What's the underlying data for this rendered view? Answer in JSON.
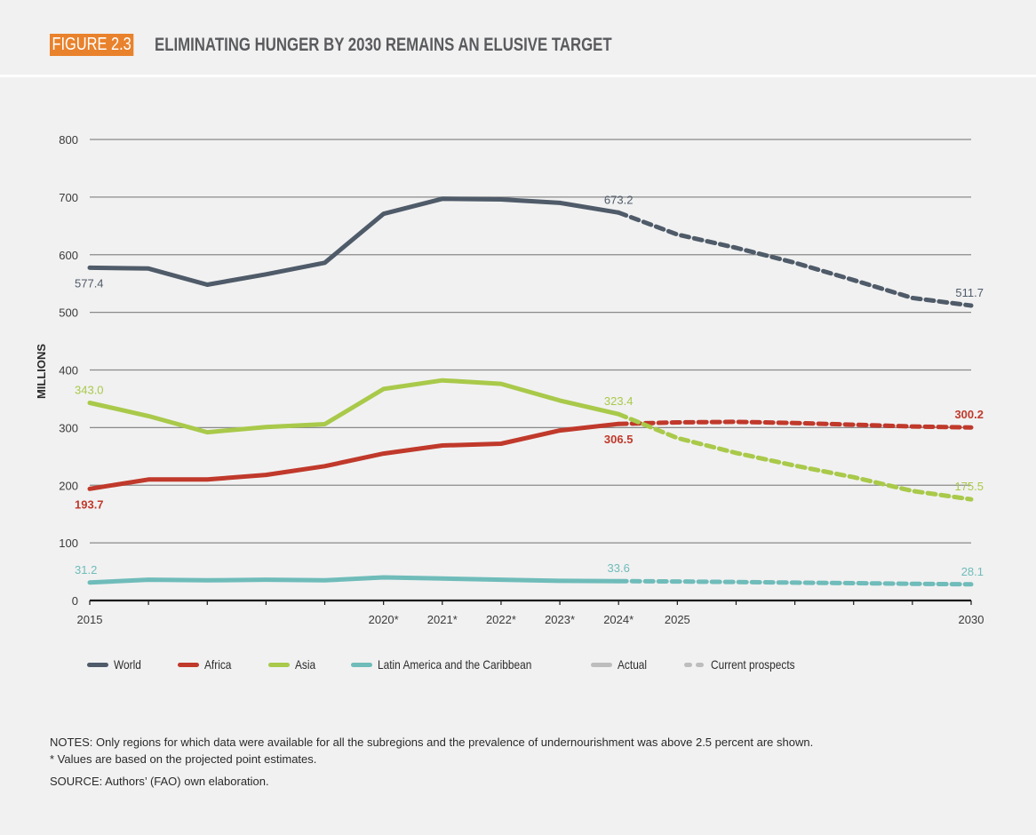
{
  "header": {
    "figure_badge": "FIGURE 2.3",
    "title": "ELIMINATING HUNGER BY 2030 REMAINS AN ELUSIVE TARGET",
    "badge_color": "#e9822c"
  },
  "chart_data": {
    "type": "line",
    "title": "ELIMINATING HUNGER BY 2030 REMAINS AN ELUSIVE TARGET",
    "xlabel": "",
    "ylabel": "MILLIONS",
    "ylim": [
      0,
      800
    ],
    "yticks": [
      0,
      100,
      200,
      300,
      400,
      500,
      600,
      700,
      800
    ],
    "xlim": [
      2015,
      2030
    ],
    "x": [
      2015,
      2016,
      2017,
      2018,
      2019,
      2020,
      2021,
      2022,
      2023,
      2024,
      2025,
      2026,
      2027,
      2028,
      2029,
      2030
    ],
    "xtick_labels": [
      {
        "x": 2015,
        "label": "2015"
      },
      {
        "x": 2016,
        "label": ""
      },
      {
        "x": 2017,
        "label": ""
      },
      {
        "x": 2018,
        "label": ""
      },
      {
        "x": 2019,
        "label": ""
      },
      {
        "x": 2020,
        "label": "2020*"
      },
      {
        "x": 2021,
        "label": "2021*"
      },
      {
        "x": 2022,
        "label": "2022*"
      },
      {
        "x": 2023,
        "label": "2023*"
      },
      {
        "x": 2024,
        "label": "2024*"
      },
      {
        "x": 2025,
        "label": "2025"
      },
      {
        "x": 2026,
        "label": ""
      },
      {
        "x": 2027,
        "label": ""
      },
      {
        "x": 2028,
        "label": ""
      },
      {
        "x": 2029,
        "label": ""
      },
      {
        "x": 2030,
        "label": "2030"
      }
    ],
    "grid": true,
    "actual_until": 2024,
    "series": [
      {
        "name": "World",
        "color": "#4f5b69",
        "values": [
          577.4,
          576,
          548,
          566,
          586,
          671,
          697,
          696,
          690,
          673.2,
          635,
          612,
          586,
          556,
          525,
          511.7
        ],
        "labels": [
          {
            "x": 2015,
            "text": "577.4",
            "pos": "below"
          },
          {
            "x": 2024,
            "text": "673.2",
            "pos": "above"
          },
          {
            "x": 2030,
            "text": "511.7",
            "pos": "above"
          }
        ]
      },
      {
        "name": "Africa",
        "color": "#c0392b",
        "values": [
          193.7,
          210,
          210,
          218,
          233,
          255,
          269,
          272,
          295,
          306.5,
          309,
          310,
          308,
          305,
          302,
          300.2
        ],
        "labels": [
          {
            "x": 2015,
            "text": "193.7",
            "pos": "below"
          },
          {
            "x": 2024,
            "text": "306.5",
            "pos": "below"
          },
          {
            "x": 2030,
            "text": "300.2",
            "pos": "above"
          }
        ]
      },
      {
        "name": "Asia",
        "color": "#a9c94a",
        "values": [
          343.0,
          320,
          292,
          301,
          306,
          367,
          382,
          376,
          347,
          323.4,
          282,
          256,
          234,
          214,
          190,
          175.5
        ],
        "labels": [
          {
            "x": 2015,
            "text": "343.0",
            "pos": "above"
          },
          {
            "x": 2024,
            "text": "323.4",
            "pos": "above"
          },
          {
            "x": 2030,
            "text": "175.5",
            "pos": "above"
          }
        ]
      },
      {
        "name": "Latin America and the Caribbean",
        "color": "#6fbcba",
        "values": [
          31.2,
          36,
          35,
          36,
          35,
          40,
          38,
          36,
          34,
          33.6,
          33,
          32,
          31,
          30,
          29,
          28.1
        ],
        "labels": [
          {
            "x": 2015,
            "text": "31.2",
            "pos": "above"
          },
          {
            "x": 2024,
            "text": "33.6",
            "pos": "above"
          },
          {
            "x": 2030,
            "text": "28.1",
            "pos": "above"
          }
        ]
      }
    ],
    "legend": {
      "placement": "bottom-left",
      "items": [
        {
          "label": "World",
          "color": "#4f5b69",
          "style": "solid"
        },
        {
          "label": "Africa",
          "color": "#c0392b",
          "style": "solid"
        },
        {
          "label": "Asia",
          "color": "#a9c94a",
          "style": "solid"
        },
        {
          "label": "Latin America and the Caribbean",
          "color": "#6fbcba",
          "style": "solid"
        },
        {
          "label": "Actual",
          "color": "#bdbdbd",
          "style": "solid"
        },
        {
          "label": "Current prospects",
          "color": "#bdbdbd",
          "style": "dashed"
        }
      ]
    }
  },
  "notes": {
    "line1": "NOTES: Only regions for which data were available for all the subregions and the prevalence of undernourishment was above 2.5 percent are shown.",
    "line2": "* Values are based on the projected point estimates.",
    "source": "SOURCE: Authors’ (FAO) own elaboration."
  }
}
